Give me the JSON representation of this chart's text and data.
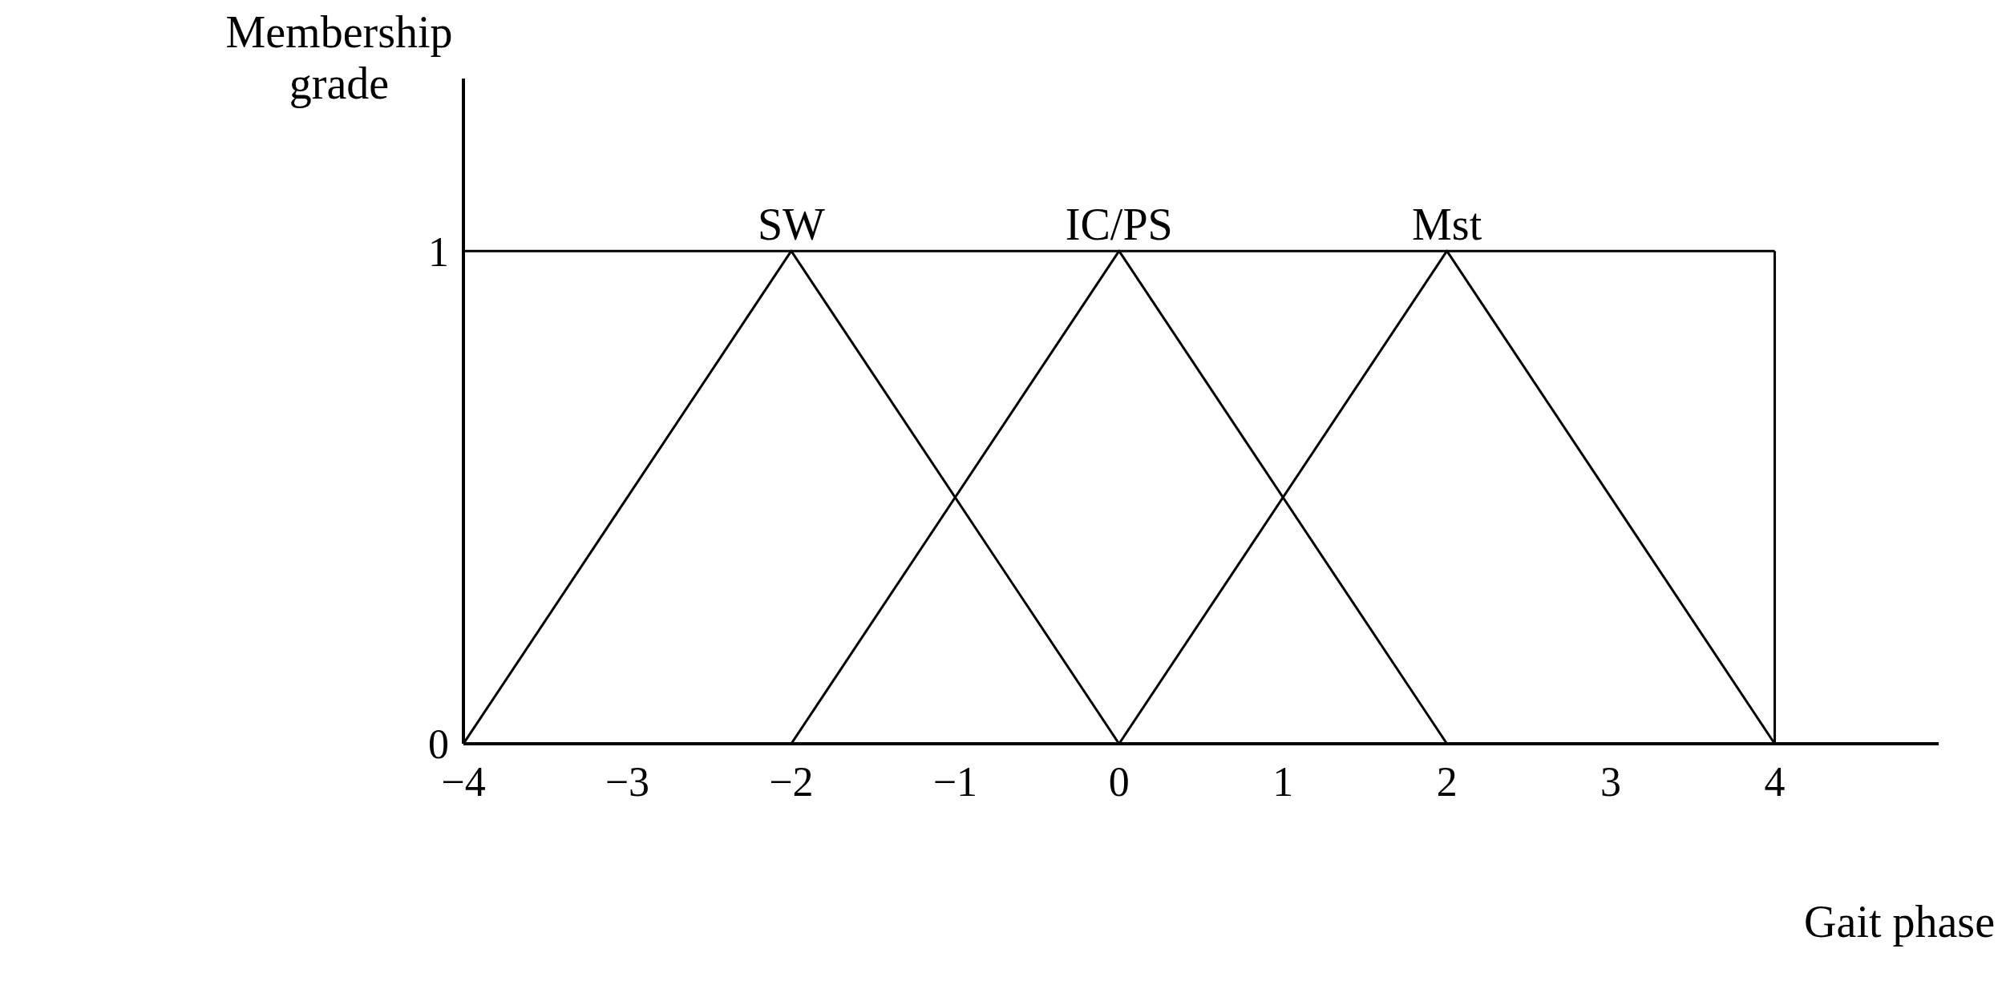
{
  "chart_data": {
    "type": "line",
    "xlabel": "Gait phase",
    "ylabel": "Membership grade",
    "xlim": [
      -4,
      5
    ],
    "ylim": [
      0,
      1.35
    ],
    "xticks": [
      {
        "value": -4,
        "label": "−4"
      },
      {
        "value": -3,
        "label": "−3"
      },
      {
        "value": -2,
        "label": "−2"
      },
      {
        "value": -1,
        "label": "−1"
      },
      0,
      1,
      2,
      3,
      4
    ],
    "yticks": [
      0,
      1
    ],
    "series": [
      {
        "name": "SW",
        "color": "#000000",
        "x": [
          -4,
          -2,
          0
        ],
        "values": [
          0,
          1,
          0
        ]
      },
      {
        "name": "IC/PS",
        "color": "#000000",
        "x": [
          -2,
          0,
          2
        ],
        "values": [
          0,
          1,
          0
        ]
      },
      {
        "name": "Mst",
        "color": "#000000",
        "x": [
          0,
          2,
          4
        ],
        "values": [
          0,
          1,
          0
        ]
      }
    ],
    "ref_lines": [
      {
        "axis": "y",
        "value": 1,
        "color": "#000000"
      },
      {
        "axis": "x",
        "value": 4,
        "color": "#000000"
      }
    ],
    "marker": "none",
    "line_style": "solid"
  }
}
